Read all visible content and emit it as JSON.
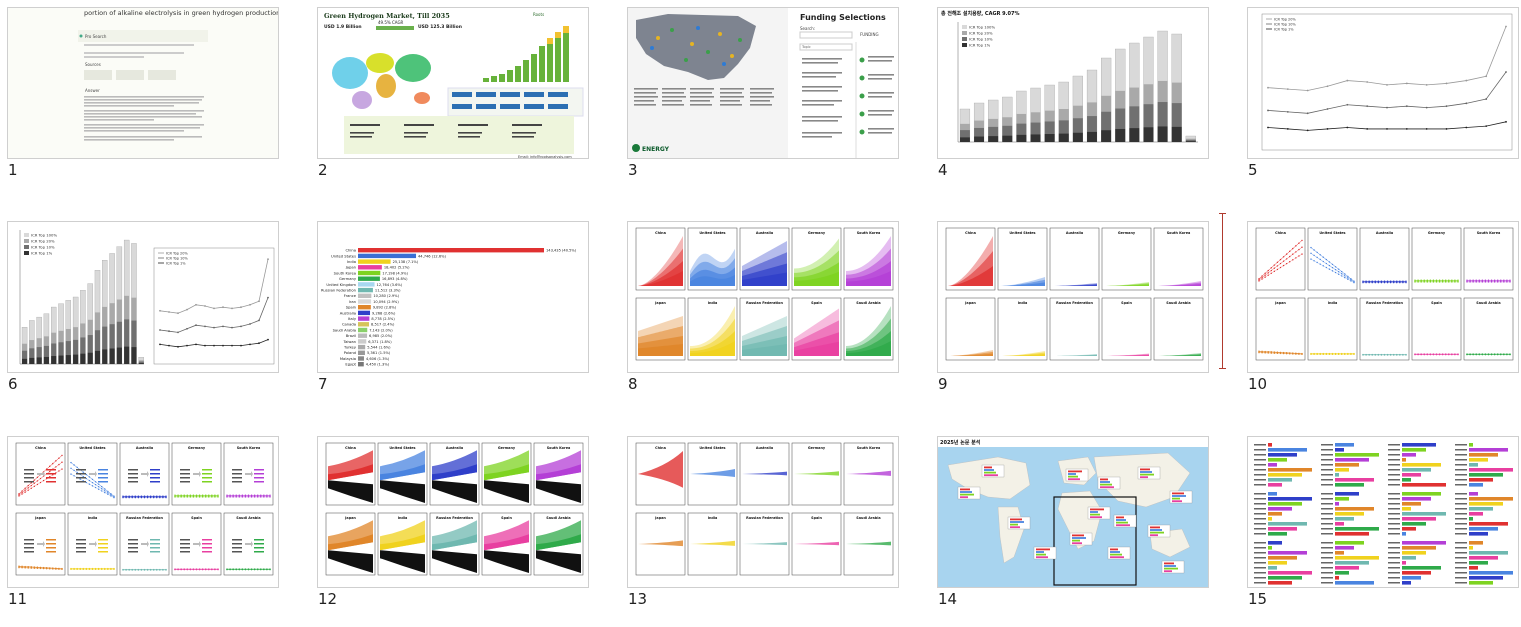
{
  "thumbnails": [
    {
      "index": "1",
      "title": "portion of alkaline electrolysis in green hydrogen production",
      "sections": [
        "Pro Search",
        "Sources",
        "Answer"
      ]
    },
    {
      "index": "2",
      "title": "Green Hydrogen Market, Till 2035",
      "stats": [
        "USD 1.9 Billion",
        "49.5% CAGR",
        "USD 125.3 Billion"
      ],
      "footer": "Email: info@rootsanalysis.com"
    },
    {
      "index": "3",
      "title": "Funding Selections",
      "search_label": "Search:",
      "column": "FUNDING",
      "topic_label": "Topic",
      "logo": "ENERGY"
    },
    {
      "index": "4",
      "title": "총 전해조 설치용량, CAGR 9.07%",
      "legend": [
        "ICR Top 100%",
        "ICR Top 20%",
        "ICR Top 10%",
        "ICR Top 1%"
      ]
    },
    {
      "index": "5",
      "legend": [
        "ICR Top 20%",
        "ICR Top 10%",
        "ICR Top 1%"
      ]
    },
    {
      "index": "6",
      "legend": [
        "ICR Top 100%",
        "ICR Top 20%",
        "ICR Top 10%",
        "ICR Top 1%"
      ]
    },
    {
      "index": "7"
    },
    {
      "index": "8"
    },
    {
      "index": "9"
    },
    {
      "index": "10"
    },
    {
      "index": "11"
    },
    {
      "index": "12"
    },
    {
      "index": "13"
    },
    {
      "index": "14",
      "title": "2025년 논문 분석"
    },
    {
      "index": "15"
    }
  ],
  "rank_chart": {
    "countries": [
      "China",
      "United States",
      "India",
      "Japan",
      "South Korea",
      "Germany",
      "United Kingdom",
      "Russian Federation",
      "France",
      "Iran",
      "Spain",
      "Australia",
      "Italy",
      "Canada",
      "Saudi Arabia",
      "Brazil",
      "Taiwan",
      "Turkey",
      "Poland",
      "Malaysia",
      "Egypt"
    ],
    "values": [
      143435,
      44746,
      25138,
      18402,
      17198,
      16893,
      12764,
      11512,
      10280,
      10094,
      9892,
      9268,
      8778,
      8517,
      7143,
      6985,
      6371,
      5544,
      5361,
      4606,
      4450
    ],
    "labels": [
      "143,435 (40.5%)",
      "44,746 (12.6%)",
      "25,138 (7.1%)",
      "18,402 (5.2%)",
      "17,198 (4.9%)",
      "16,893 (4.8%)",
      "12,764 (3.6%)",
      "11,512 (3.3%)",
      "10,280 (2.9%)",
      "10,094 (2.9%)",
      "9,892 (2.8%)",
      "9,268 (2.6%)",
      "8,778 (2.5%)",
      "8,517 (2.4%)",
      "7,143 (2.0%)",
      "6,985 (2.0%)",
      "6,371 (1.8%)",
      "5,544 (1.6%)",
      "5,361 (1.5%)",
      "4,606 (1.3%)",
      "4,450 (1.3%)"
    ]
  },
  "panel_countries": [
    "China",
    "United States",
    "Australia",
    "Germany",
    "South Korea",
    "Japan",
    "India",
    "Russian Federation",
    "Spain",
    "Saudi Arabia"
  ],
  "panel_colors": [
    "#e03131",
    "#4a84e0",
    "#2f3fc9",
    "#7ed321",
    "#b43fd6",
    "#e0862a",
    "#f0d21e",
    "#6fb8b0",
    "#e83fa0",
    "#2faa4a"
  ],
  "accent_separator": "#b03a2e"
}
